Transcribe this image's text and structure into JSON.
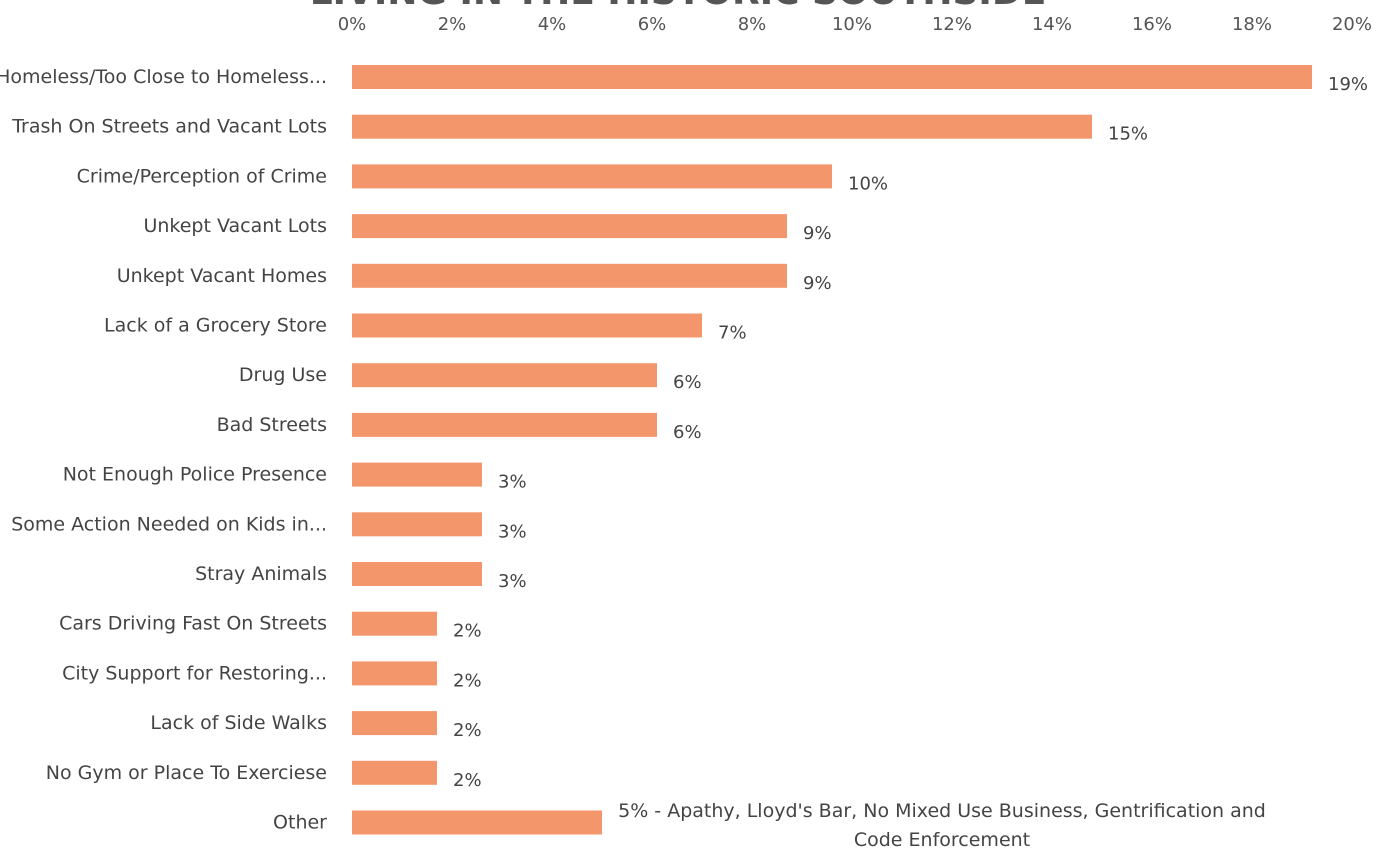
{
  "chart_data": {
    "type": "bar",
    "orientation": "horizontal",
    "title": "LIVING IN THE HISTORIC SOUTHSIDE",
    "xlim": [
      0,
      20
    ],
    "x_tick_labels": [
      "0%",
      "2%",
      "4%",
      "6%",
      "8%",
      "10%",
      "12%",
      "14%",
      "16%",
      "18%",
      "20%"
    ],
    "categories": [
      "Homeless/Too Close to Homeless...",
      "Trash On Streets and Vacant Lots",
      "Crime/Perception of Crime",
      "Unkept Vacant Lots",
      "Unkept Vacant Homes",
      "Lack of a  Grocery Store",
      "Drug Use",
      "Bad Streets",
      "Not Enough Police Presence",
      "Some Action Needed on Kids in...",
      "Stray Animals",
      "Cars Driving Fast On Streets",
      "City Support for Restoring...",
      "Lack of Side Walks",
      "No Gym or Place To Exerciese",
      "Other"
    ],
    "values": [
      19.2,
      14.8,
      9.6,
      8.7,
      8.7,
      7.0,
      6.1,
      6.1,
      2.6,
      2.6,
      2.6,
      1.7,
      1.7,
      1.7,
      1.7,
      5.0
    ],
    "data_labels": [
      "19%",
      "15%",
      "10%",
      "9%",
      "9%",
      "7%",
      "6%",
      "6%",
      "3%",
      "3%",
      "3%",
      "2%",
      "2%",
      "2%",
      "2%",
      ""
    ],
    "annotation_lines": [
      "5% - Apathy, Lloyd's Bar, No Mixed Use Business, Gentrification and",
      "Code Enforcement"
    ],
    "bar_color": "#F4966B",
    "grid": false,
    "legend": "none"
  }
}
